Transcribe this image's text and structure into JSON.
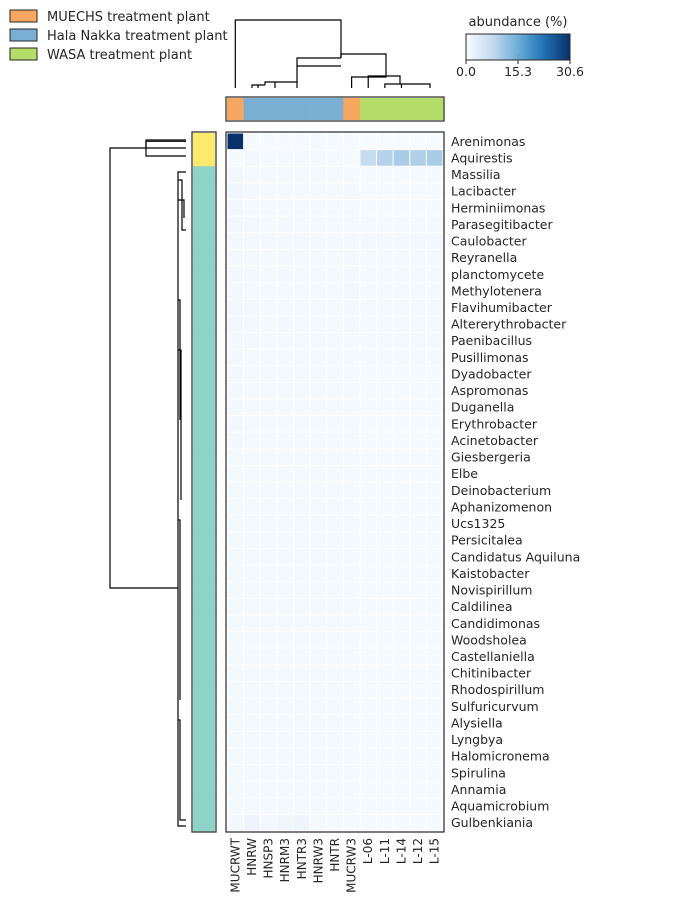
{
  "chart_data": {
    "type": "heatmap",
    "title": "",
    "xlabel": "",
    "ylabel": "",
    "colorbar": {
      "label": "abundance (%)",
      "min": 0.0,
      "max": 30.6,
      "ticks": [
        "0.0",
        "15.3",
        "30.6"
      ],
      "colors": [
        "#f7fbff",
        "#c6dbef",
        "#6baed6",
        "#2171b5",
        "#08306b"
      ]
    },
    "legend": {
      "placement": "top-left",
      "entries": [
        {
          "label": "MUECHS treatment plant",
          "color": "#f5a661"
        },
        {
          "label": "Hala Nakka treatment plant",
          "color": "#7aaed3"
        },
        {
          "label": "WASA treatment plant",
          "color": "#b4dc68"
        }
      ]
    },
    "columns": [
      "MUCRWT",
      "HNRW",
      "HNSP3",
      "HNRM3",
      "HNTR3",
      "HNRW3",
      "HNTR",
      "MUCRW3",
      "L-06",
      "L-11",
      "L-14",
      "L-12",
      "L-15"
    ],
    "column_groups": [
      "MUECHS treatment plant",
      "Hala Nakka treatment plant",
      "Hala Nakka treatment plant",
      "Hala Nakka treatment plant",
      "Hala Nakka treatment plant",
      "Hala Nakka treatment plant",
      "Hala Nakka treatment plant",
      "MUECHS treatment plant",
      "WASA treatment plant",
      "WASA treatment plant",
      "WASA treatment plant",
      "WASA treatment plant",
      "WASA treatment plant"
    ],
    "rows": [
      "Arenimonas",
      "Aquirestis",
      "Massilia",
      "Lacibacter",
      "Herminiimonas",
      "Parasegitibacter",
      "Caulobacter",
      "Reyranella",
      "planctomycete",
      "Methylotenera",
      "Flavihumibacter",
      "Altererythrobacter",
      "Paenibacillus",
      "Pusillimonas",
      "Dyadobacter",
      "Aspromonas",
      "Duganella",
      "Erythrobacter",
      "Acinetobacter",
      "Giesbergeria",
      "Elbe",
      "Deinobacterium",
      "Aphanizomenon",
      "Ucs1325",
      "Persicitalea",
      "Candidatus Aquiluna",
      "Kaistobacter",
      "Novispirillum",
      "Caldilinea",
      "Candidimonas",
      "Woodsholea",
      "Castellaniella",
      "Chitinibacter",
      "Rhodospirillum",
      "Sulfuricurvum",
      "Alysiella",
      "Lyngbya",
      "Halomicronema",
      "Spirulina",
      "Annamia",
      "Aquamicrobium",
      "Gulbenkiania"
    ],
    "row_clusters": [
      "cluster-1",
      "cluster-1",
      "cluster-2",
      "cluster-2",
      "cluster-2",
      "cluster-2",
      "cluster-2",
      "cluster-2",
      "cluster-2",
      "cluster-2",
      "cluster-2",
      "cluster-2",
      "cluster-2",
      "cluster-2",
      "cluster-2",
      "cluster-2",
      "cluster-2",
      "cluster-2",
      "cluster-2",
      "cluster-2",
      "cluster-2",
      "cluster-2",
      "cluster-2",
      "cluster-2",
      "cluster-2",
      "cluster-2",
      "cluster-2",
      "cluster-2",
      "cluster-2",
      "cluster-2",
      "cluster-2",
      "cluster-2",
      "cluster-2",
      "cluster-2",
      "cluster-2",
      "cluster-2",
      "cluster-2",
      "cluster-2",
      "cluster-2",
      "cluster-2",
      "cluster-2",
      "cluster-2"
    ],
    "row_cluster_colors": {
      "cluster-1": "#fde96b",
      "cluster-2": "#8dd3c7"
    },
    "values": [
      [
        30.6,
        0.3,
        0.2,
        0.2,
        0.2,
        0.5,
        0.2,
        0.2,
        0.1,
        0.1,
        0.1,
        0.1,
        0.1
      ],
      [
        0.3,
        0.6,
        0.4,
        0.5,
        0.4,
        0.4,
        0.4,
        0.3,
        7.5,
        9.0,
        10.0,
        9.5,
        10.0
      ],
      [
        1.0,
        0.5,
        0.4,
        0.5,
        0.4,
        0.4,
        0.4,
        0.5,
        0.3,
        0.3,
        0.3,
        0.3,
        0.3
      ],
      [
        1.1,
        0.6,
        0.5,
        0.5,
        0.4,
        0.4,
        0.4,
        0.6,
        0.3,
        0.3,
        0.3,
        0.3,
        0.3
      ],
      [
        0.9,
        0.4,
        0.4,
        0.4,
        0.4,
        0.4,
        0.4,
        0.5,
        0.3,
        0.3,
        0.3,
        0.3,
        0.3
      ],
      [
        1.0,
        0.6,
        0.5,
        0.6,
        0.5,
        0.5,
        0.5,
        0.5,
        0.4,
        0.4,
        0.4,
        0.4,
        0.4
      ],
      [
        0.8,
        0.7,
        0.6,
        0.7,
        0.6,
        0.6,
        0.6,
        0.6,
        0.6,
        0.7,
        0.6,
        0.6,
        0.6
      ],
      [
        0.8,
        0.6,
        0.5,
        0.6,
        0.5,
        0.5,
        0.5,
        0.6,
        0.5,
        0.5,
        0.5,
        0.5,
        0.5
      ],
      [
        0.7,
        0.6,
        0.5,
        0.6,
        0.5,
        0.5,
        0.5,
        0.6,
        0.5,
        0.5,
        0.5,
        0.5,
        0.5
      ],
      [
        0.7,
        0.5,
        0.5,
        0.5,
        0.5,
        0.5,
        0.5,
        1.0,
        0.5,
        0.5,
        0.5,
        0.5,
        0.5
      ],
      [
        0.9,
        0.6,
        0.5,
        0.5,
        0.5,
        0.5,
        0.5,
        0.6,
        0.4,
        0.4,
        0.4,
        0.4,
        0.4
      ],
      [
        1.0,
        0.6,
        0.5,
        0.6,
        0.5,
        0.5,
        0.5,
        0.6,
        0.4,
        0.4,
        0.4,
        0.4,
        0.4
      ],
      [
        0.8,
        0.6,
        0.5,
        0.5,
        0.5,
        0.5,
        0.5,
        0.5,
        0.4,
        0.4,
        0.4,
        0.4,
        0.4
      ],
      [
        0.7,
        0.5,
        0.5,
        0.5,
        0.5,
        0.5,
        0.5,
        0.5,
        0.4,
        0.4,
        0.4,
        0.4,
        0.4
      ],
      [
        0.6,
        0.5,
        0.4,
        0.5,
        0.4,
        0.4,
        0.4,
        0.5,
        0.3,
        0.3,
        0.3,
        0.3,
        0.3
      ],
      [
        0.6,
        0.5,
        0.4,
        0.5,
        0.4,
        0.4,
        0.4,
        0.5,
        0.3,
        0.3,
        0.3,
        0.3,
        0.3
      ],
      [
        0.6,
        0.5,
        0.4,
        0.5,
        0.4,
        0.4,
        0.4,
        0.5,
        0.3,
        0.3,
        0.3,
        0.3,
        0.3
      ],
      [
        0.6,
        0.5,
        0.4,
        0.5,
        0.4,
        0.4,
        0.4,
        0.5,
        0.3,
        0.3,
        0.3,
        0.3,
        0.3
      ],
      [
        0.6,
        0.5,
        0.4,
        0.5,
        0.4,
        0.4,
        0.4,
        0.5,
        0.3,
        0.3,
        0.3,
        0.3,
        0.3
      ],
      [
        0.5,
        0.5,
        0.4,
        0.4,
        0.4,
        0.4,
        0.4,
        0.4,
        0.3,
        0.3,
        0.3,
        0.3,
        0.3
      ],
      [
        0.5,
        0.4,
        0.4,
        0.4,
        0.4,
        0.4,
        0.4,
        0.4,
        0.3,
        0.3,
        0.3,
        0.3,
        0.3
      ],
      [
        0.5,
        0.4,
        0.4,
        0.4,
        0.4,
        0.4,
        0.4,
        0.4,
        0.3,
        0.3,
        0.3,
        0.3,
        0.3
      ],
      [
        0.5,
        0.4,
        0.4,
        0.4,
        0.4,
        0.4,
        0.4,
        0.4,
        0.3,
        0.3,
        0.3,
        0.3,
        0.3
      ],
      [
        0.5,
        0.4,
        0.4,
        0.4,
        0.4,
        0.4,
        0.4,
        0.4,
        0.3,
        0.3,
        0.3,
        0.3,
        0.3
      ],
      [
        0.5,
        0.4,
        0.4,
        0.4,
        0.4,
        0.4,
        0.4,
        0.4,
        0.3,
        0.3,
        0.3,
        0.3,
        0.3
      ],
      [
        0.5,
        0.4,
        0.4,
        0.4,
        0.4,
        0.4,
        0.4,
        0.4,
        0.3,
        0.3,
        0.3,
        0.3,
        0.3
      ],
      [
        0.5,
        0.4,
        0.4,
        0.4,
        0.4,
        0.4,
        0.4,
        0.4,
        0.3,
        0.3,
        0.3,
        0.3,
        0.3
      ],
      [
        0.5,
        0.4,
        0.4,
        0.4,
        0.4,
        0.4,
        0.4,
        0.4,
        0.3,
        0.3,
        0.3,
        0.3,
        0.3
      ],
      [
        0.5,
        0.4,
        0.4,
        0.4,
        0.4,
        0.4,
        0.4,
        0.4,
        0.3,
        0.3,
        0.3,
        0.3,
        0.3
      ],
      [
        0.5,
        0.4,
        0.4,
        0.4,
        0.4,
        0.4,
        0.4,
        0.4,
        0.3,
        0.3,
        0.3,
        0.3,
        0.3
      ],
      [
        0.5,
        0.4,
        0.4,
        0.4,
        0.4,
        0.4,
        0.4,
        0.4,
        0.3,
        0.3,
        0.3,
        0.3,
        0.3
      ],
      [
        0.5,
        0.4,
        0.4,
        0.4,
        0.4,
        0.4,
        0.4,
        0.4,
        0.3,
        0.3,
        0.3,
        0.3,
        0.3
      ],
      [
        0.5,
        0.4,
        0.4,
        0.4,
        0.4,
        0.4,
        0.4,
        0.4,
        0.3,
        0.3,
        0.3,
        0.3,
        0.3
      ],
      [
        0.5,
        0.4,
        0.4,
        0.4,
        0.4,
        0.4,
        0.4,
        0.4,
        0.3,
        0.3,
        0.3,
        0.3,
        0.3
      ],
      [
        0.5,
        0.4,
        0.4,
        0.4,
        0.4,
        0.4,
        0.4,
        0.4,
        0.3,
        0.3,
        0.3,
        0.3,
        0.3
      ],
      [
        0.5,
        0.4,
        0.4,
        0.4,
        0.4,
        0.4,
        0.4,
        0.4,
        0.3,
        0.3,
        0.3,
        0.3,
        0.3
      ],
      [
        0.5,
        0.4,
        0.4,
        0.4,
        0.4,
        0.4,
        0.4,
        0.4,
        0.3,
        0.3,
        0.3,
        0.3,
        0.3
      ],
      [
        0.5,
        0.4,
        0.4,
        0.4,
        0.4,
        0.4,
        0.4,
        0.4,
        0.3,
        0.3,
        0.3,
        0.3,
        0.3
      ],
      [
        0.5,
        0.4,
        0.4,
        0.4,
        0.4,
        0.4,
        0.4,
        0.4,
        0.3,
        0.3,
        0.3,
        0.3,
        0.3
      ],
      [
        0.5,
        0.4,
        0.4,
        0.4,
        0.4,
        0.4,
        0.4,
        0.4,
        0.3,
        0.3,
        0.3,
        0.3,
        0.3
      ],
      [
        0.5,
        0.4,
        0.4,
        0.4,
        0.4,
        0.4,
        0.4,
        0.4,
        0.3,
        0.3,
        0.3,
        0.3,
        0.3
      ],
      [
        0.6,
        1.6,
        0.8,
        1.2,
        1.4,
        0.5,
        0.5,
        0.5,
        0.3,
        0.3,
        0.3,
        0.3,
        0.3
      ]
    ]
  }
}
